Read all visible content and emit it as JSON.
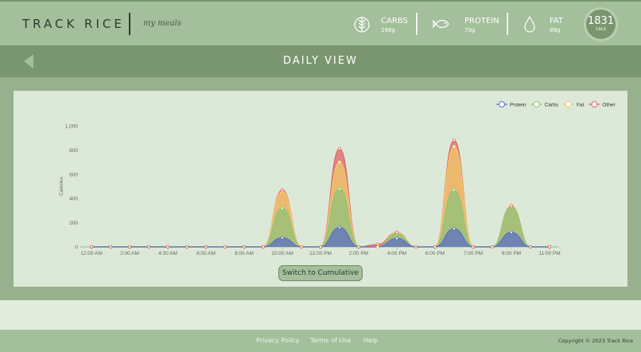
{
  "header": {
    "logo": "TRACK RICE",
    "tagline": "my meals",
    "macros": [
      {
        "label": "CARBS",
        "value": "198g",
        "icon": "wheat-icon"
      },
      {
        "label": "PROTEIN",
        "value": "70g",
        "icon": "fish-icon"
      },
      {
        "label": "FAT",
        "value": "89g",
        "icon": "droplet-icon"
      }
    ],
    "calories": {
      "value": "1831",
      "unit": "CALS"
    }
  },
  "page": {
    "title": "DAILY VIEW",
    "back_icon": "back-arrow-icon"
  },
  "button": {
    "label": "Switch to Cumulative"
  },
  "footer": {
    "links": [
      "Privacy Policy",
      "Terms of Use",
      "Help"
    ],
    "copyright": "Copyright © 2023 Track Rice"
  },
  "colors": {
    "protein": "#5b6fc4",
    "carbs": "#8fc47a",
    "fat": "#f0c86a",
    "other": "#de6464"
  },
  "chart_data": {
    "type": "area",
    "stacked": true,
    "ylabel": "Calories",
    "ylim": [
      0,
      1000
    ],
    "yticks": [
      "0",
      "200",
      "400",
      "600",
      "800",
      "1,000"
    ],
    "xtick_labels": [
      "12:00 AM",
      "2:00 AM",
      "4:00 AM",
      "6:00 AM",
      "8:00 AM",
      "10:00 AM",
      "12:00 PM",
      "2:00 PM",
      "4:00 PM",
      "6:00 PM",
      "7:00 PM",
      "9:00 PM",
      "11:00 PM"
    ],
    "legend": "top-right",
    "series": [
      {
        "name": "Protein",
        "values": [
          0,
          0,
          0,
          0,
          0,
          0,
          0,
          0,
          0,
          0,
          75,
          0,
          0,
          160,
          0,
          0,
          70,
          0,
          0,
          150,
          0,
          0,
          120,
          0,
          0
        ]
      },
      {
        "name": "Carbs",
        "values": [
          0,
          0,
          0,
          0,
          0,
          0,
          0,
          0,
          0,
          0,
          245,
          0,
          0,
          320,
          0,
          0,
          40,
          0,
          0,
          320,
          0,
          0,
          210,
          0,
          0
        ]
      },
      {
        "name": "Fat",
        "values": [
          0,
          0,
          0,
          0,
          0,
          0,
          0,
          0,
          0,
          0,
          140,
          0,
          0,
          220,
          0,
          0,
          10,
          0,
          0,
          360,
          0,
          0,
          10,
          0,
          0
        ]
      },
      {
        "name": "Other",
        "values": [
          0,
          0,
          0,
          0,
          0,
          0,
          0,
          0,
          0,
          0,
          10,
          0,
          0,
          110,
          0,
          20,
          0,
          0,
          0,
          50,
          0,
          0,
          0,
          0,
          0
        ]
      }
    ]
  }
}
